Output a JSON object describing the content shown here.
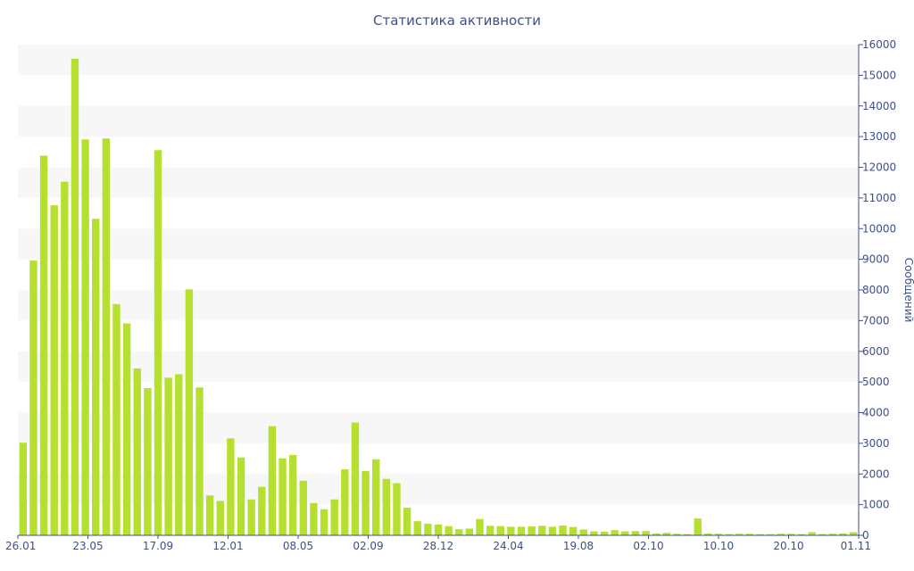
{
  "chart_data": {
    "type": "bar",
    "title": "Статистика активности",
    "ylabel": "Сообщений",
    "ylim": [
      0,
      16000
    ],
    "y_ticks": [
      0,
      1000,
      2000,
      3000,
      4000,
      5000,
      6000,
      7000,
      8000,
      9000,
      10000,
      11000,
      12000,
      13000,
      14000,
      15000,
      16000
    ],
    "y_axis_side": "right",
    "x_tick_labels": [
      "26.01",
      "23.05",
      "17.09",
      "12.01",
      "08.05",
      "02.09",
      "28.12",
      "24.04",
      "19.08",
      "02.10",
      "10.10",
      "20.10",
      "01.11"
    ],
    "bar_color": "#b5e02f",
    "band_color": "#f7f7f7",
    "values": [
      3020,
      8960,
      12380,
      10760,
      11530,
      15540,
      12910,
      10320,
      12940,
      7540,
      6910,
      5440,
      4800,
      12560,
      5140,
      5250,
      8020,
      4820,
      1300,
      1120,
      3160,
      2540,
      1170,
      1580,
      3560,
      2510,
      2620,
      1780,
      1050,
      850,
      1170,
      2150,
      3680,
      2100,
      2480,
      1840,
      1700,
      900,
      460,
      380,
      350,
      300,
      200,
      220,
      530,
      310,
      300,
      280,
      280,
      290,
      310,
      280,
      320,
      270,
      190,
      130,
      120,
      170,
      130,
      140,
      140,
      60,
      80,
      50,
      40,
      550,
      60,
      50,
      40,
      50,
      50,
      40,
      40,
      50,
      50,
      40,
      100,
      40,
      50,
      60,
      100
    ]
  }
}
